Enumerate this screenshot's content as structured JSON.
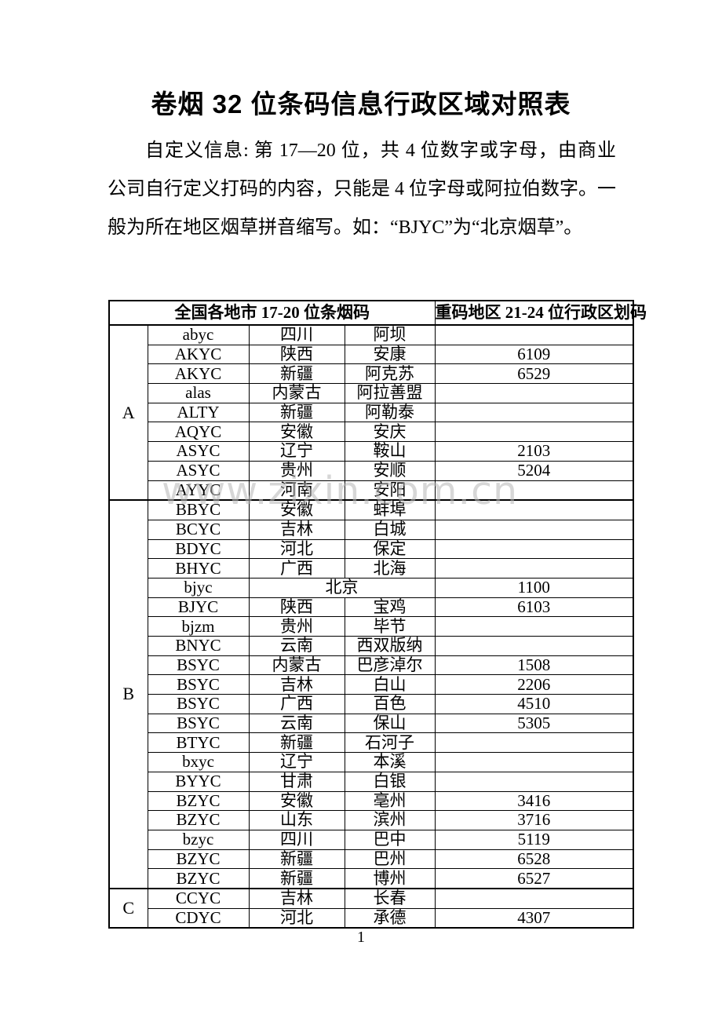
{
  "page": {
    "title": "卷烟 32 位条码信息行政区域对照表",
    "paragraph": "自定义信息: 第 17—20 位，共 4 位数字或字母，由商业公司自行定义打码的内容，只能是 4 位字母或阿拉伯数字。一般为所在地区烟草拼音缩写。如：“BJYC”为“北京烟草”。",
    "watermark": "www.zixin.com.cn",
    "page_number": "1"
  },
  "table": {
    "headers": {
      "left": "全国各地市 17-20 位条烟码",
      "right": "重码地区 21-24 位行政区划码"
    },
    "sections": [
      {
        "letter": "A",
        "rows": [
          {
            "code": "abyc",
            "province": "四川",
            "city": "阿坝",
            "num": ""
          },
          {
            "code": "AKYC",
            "province": "陕西",
            "city": "安康",
            "num": "6109"
          },
          {
            "code": "AKYC",
            "province": "新疆",
            "city": "阿克苏",
            "num": "6529"
          },
          {
            "code": "alas",
            "province": "内蒙古",
            "city": "阿拉善盟",
            "num": ""
          },
          {
            "code": "ALTY",
            "province": "新疆",
            "city": "阿勒泰",
            "num": ""
          },
          {
            "code": "AQYC",
            "province": "安徽",
            "city": "安庆",
            "num": ""
          },
          {
            "code": "ASYC",
            "province": "辽宁",
            "city": "鞍山",
            "num": "2103"
          },
          {
            "code": "ASYC",
            "province": "贵州",
            "city": "安顺",
            "num": "5204"
          },
          {
            "code": "AYYC",
            "province": "河南",
            "city": "安阳",
            "num": ""
          }
        ]
      },
      {
        "letter": "B",
        "rows": [
          {
            "code": "BBYC",
            "province": "安徽",
            "city": "蚌埠",
            "num": ""
          },
          {
            "code": "BCYC",
            "province": "吉林",
            "city": "白城",
            "num": ""
          },
          {
            "code": "BDYC",
            "province": "河北",
            "city": "保定",
            "num": ""
          },
          {
            "code": "BHYC",
            "province": "广西",
            "city": "北海",
            "num": ""
          },
          {
            "code": "bjyc",
            "province": "北京",
            "city": null,
            "num": "1100",
            "merged": true
          },
          {
            "code": "BJYC",
            "province": "陕西",
            "city": "宝鸡",
            "num": "6103"
          },
          {
            "code": "bjzm",
            "province": "贵州",
            "city": "毕节",
            "num": ""
          },
          {
            "code": "BNYC",
            "province": "云南",
            "city": "西双版纳",
            "num": ""
          },
          {
            "code": "BSYC",
            "province": "内蒙古",
            "city": "巴彦淖尔",
            "num": "1508"
          },
          {
            "code": "BSYC",
            "province": "吉林",
            "city": "白山",
            "num": "2206"
          },
          {
            "code": "BSYC",
            "province": "广西",
            "city": "百色",
            "num": "4510"
          },
          {
            "code": "BSYC",
            "province": "云南",
            "city": "保山",
            "num": "5305"
          },
          {
            "code": "BTYC",
            "province": "新疆",
            "city": "石河子",
            "num": ""
          },
          {
            "code": "bxyc",
            "province": "辽宁",
            "city": "本溪",
            "num": ""
          },
          {
            "code": "BYYC",
            "province": "甘肃",
            "city": "白银",
            "num": ""
          },
          {
            "code": "BZYC",
            "province": "安徽",
            "city": "亳州",
            "num": "3416"
          },
          {
            "code": "BZYC",
            "province": "山东",
            "city": "滨州",
            "num": "3716"
          },
          {
            "code": "bzyc",
            "province": "四川",
            "city": "巴中",
            "num": "5119"
          },
          {
            "code": "BZYC",
            "province": "新疆",
            "city": "巴州",
            "num": "6528"
          },
          {
            "code": "BZYC",
            "province": "新疆",
            "city": "博州",
            "num": "6527"
          }
        ]
      },
      {
        "letter": "C",
        "rows": [
          {
            "code": "CCYC",
            "province": "吉林",
            "city": "长春",
            "num": ""
          },
          {
            "code": "CDYC",
            "province": "河北",
            "city": "承德",
            "num": "4307"
          }
        ]
      }
    ]
  }
}
